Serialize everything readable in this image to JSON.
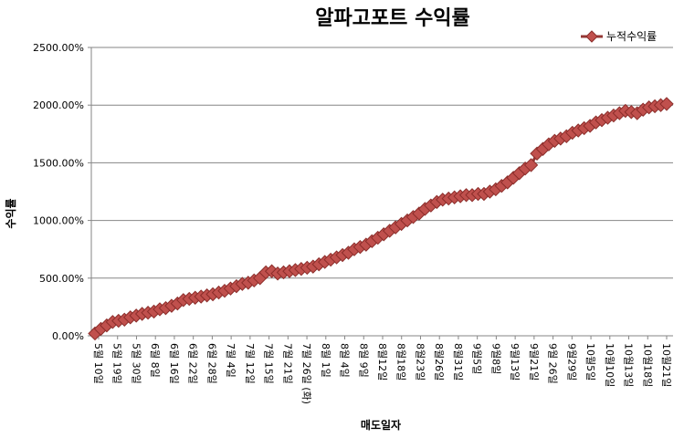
{
  "chart_data": {
    "type": "line",
    "title": "알파고포트 수익률",
    "xlabel": "매도일자",
    "ylabel": "수익률",
    "ylim": [
      0,
      2500
    ],
    "y_ticks": [
      "0.00%",
      "500.00%",
      "1000.00%",
      "1500.00%",
      "2000.00%",
      "2500.00%"
    ],
    "grid": true,
    "legend_position": "top-right",
    "series_color": "#c0504d",
    "series": [
      {
        "name": "누적수익률",
        "values": [
          20,
          60,
          90,
          120,
          130,
          140,
          160,
          175,
          190,
          200,
          210,
          230,
          240,
          260,
          280,
          310,
          320,
          330,
          340,
          350,
          360,
          375,
          390,
          410,
          430,
          450,
          460,
          480,
          500,
          550,
          560,
          540,
          550,
          560,
          570,
          580,
          590,
          600,
          620,
          640,
          660,
          680,
          700,
          720,
          750,
          770,
          790,
          820,
          850,
          880,
          910,
          940,
          970,
          1000,
          1030,
          1060,
          1100,
          1130,
          1160,
          1180,
          1190,
          1200,
          1210,
          1220,
          1220,
          1230,
          1230,
          1250,
          1270,
          1300,
          1330,
          1370,
          1410,
          1450,
          1480,
          1580,
          1620,
          1660,
          1690,
          1710,
          1730,
          1760,
          1780,
          1800,
          1820,
          1850,
          1870,
          1890,
          1910,
          1930,
          1950,
          1940,
          1930,
          1960,
          1980,
          1990,
          2000,
          2010
        ]
      }
    ],
    "x_tick_labels": [
      "5월 10일",
      "5월 19일",
      "5월 30일",
      "6월 8일",
      "6월 16일",
      "6월 22일",
      "6월 28일",
      "7월 4일",
      "7월 12일",
      "7월 15일",
      "7월 21일",
      "7월 26일 (화)",
      "8월 1일",
      "8월 4일",
      "8월 9일",
      "8월12일",
      "8월18일",
      "8월23일",
      "8월26일",
      "8월31일",
      "9월5일",
      "9월8일",
      "9월13일",
      "9월21일",
      "9월 26일",
      "9월29일",
      "10월5일",
      "10월10일",
      "10월13일",
      "10월18일",
      "10월21일"
    ]
  }
}
